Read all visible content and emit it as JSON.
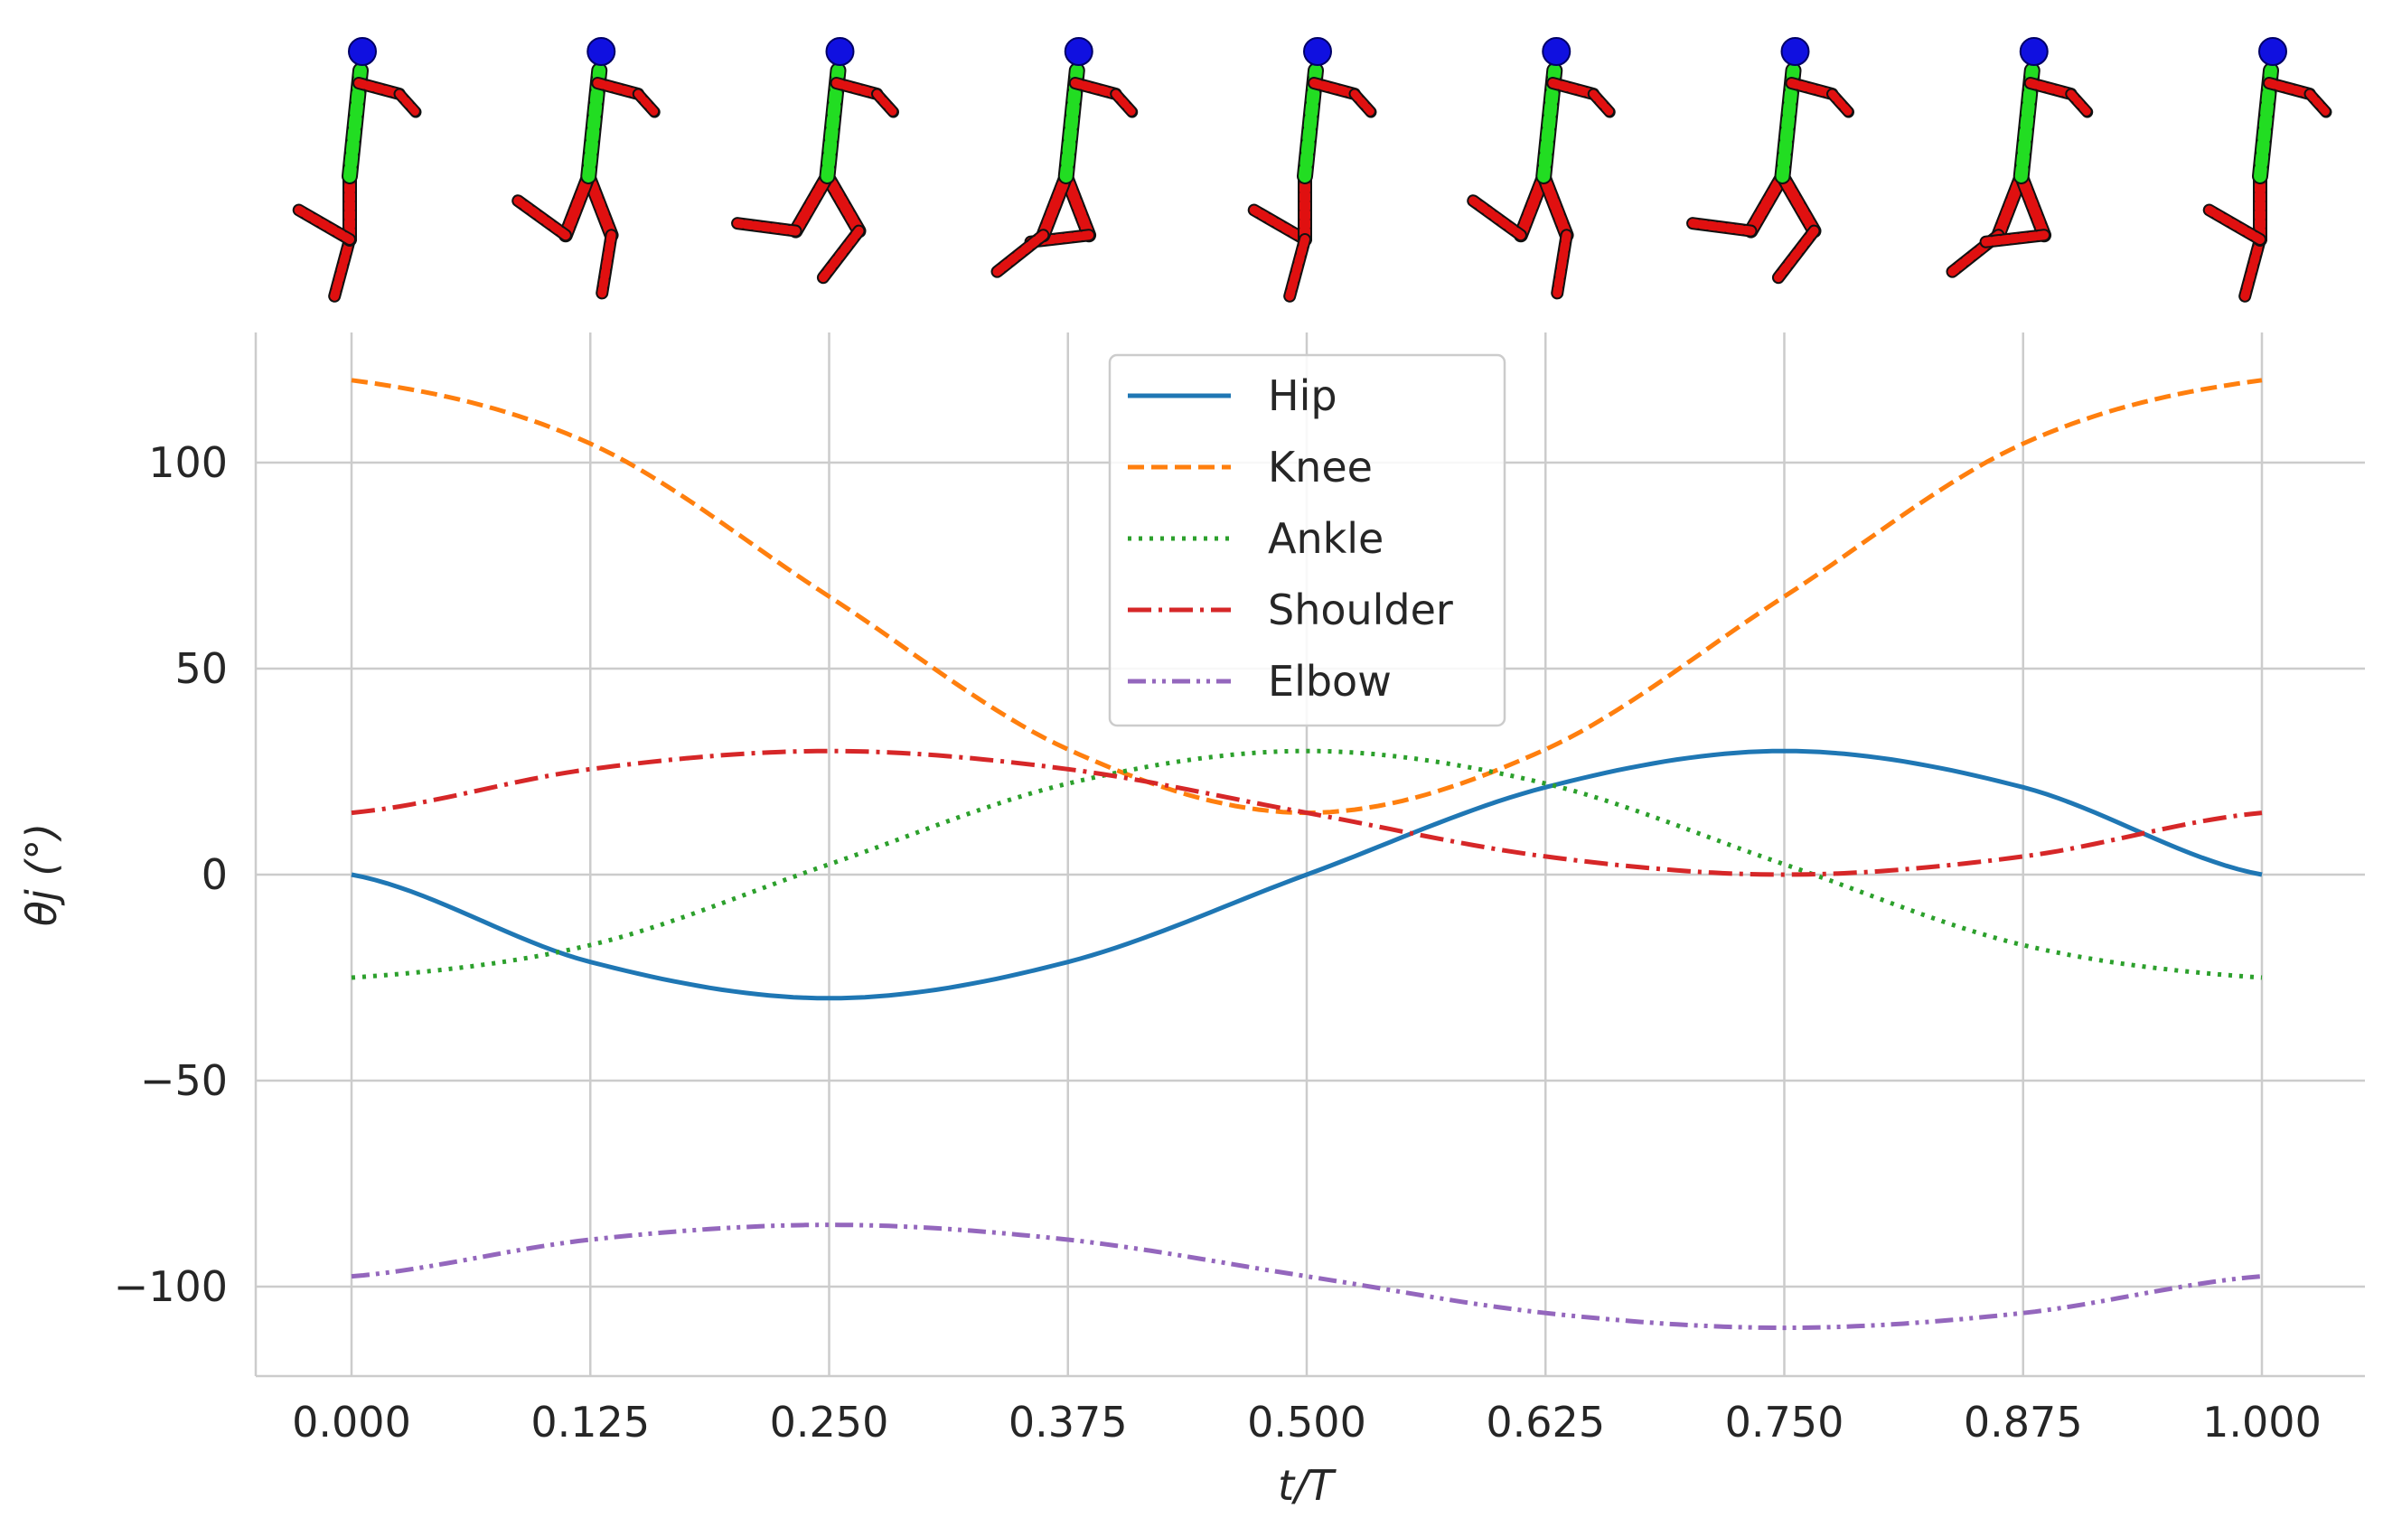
{
  "chart_data": {
    "type": "line",
    "xlabel": "t/T",
    "ylabel": "θj (°)",
    "xlim": [
      -0.05,
      1.05
    ],
    "ylim": [
      -122,
      131
    ],
    "grid": true,
    "legend_position": "top-center",
    "x_ticks": [
      "0.000",
      "0.125",
      "0.250",
      "0.375",
      "0.500",
      "0.625",
      "0.750",
      "0.875",
      "1.000"
    ],
    "y_ticks": [
      {
        "value": 100,
        "label": "100"
      },
      {
        "value": 50,
        "label": "50"
      },
      {
        "value": 0,
        "label": "0"
      },
      {
        "value": -50,
        "label": "−50"
      },
      {
        "value": -100,
        "label": "−100"
      }
    ],
    "x": [
      0.0,
      0.125,
      0.25,
      0.375,
      0.5,
      0.625,
      0.75,
      0.875,
      1.0
    ],
    "series": [
      {
        "name": "Hip",
        "color": "#1f77b4",
        "dash": "solid",
        "values": [
          0,
          -21.2,
          -30,
          -21.2,
          0,
          21.2,
          30,
          21.2,
          0
        ]
      },
      {
        "name": "Knee",
        "color": "#ff7f0e",
        "dash": "dashed",
        "values": [
          120,
          104.6,
          67.5,
          30.4,
          15,
          30.4,
          67.5,
          104.6,
          120
        ]
      },
      {
        "name": "Ankle",
        "color": "#2ca02c",
        "dash": "dotted",
        "values": [
          -25,
          -17.1,
          2.5,
          22.1,
          30,
          22.1,
          2.5,
          -17.1,
          -25
        ]
      },
      {
        "name": "Shoulder",
        "color": "#d62728",
        "dash": "dashdot",
        "values": [
          15,
          25.6,
          30,
          25.6,
          15,
          4.4,
          0,
          4.4,
          15
        ]
      },
      {
        "name": "Elbow",
        "color": "#9467bd",
        "dash": "dashdotdot",
        "values": [
          -97.5,
          -88.6,
          -85,
          -88.6,
          -97.5,
          -106.4,
          -110,
          -106.4,
          -97.5
        ]
      }
    ],
    "pose_strip": {
      "phases": [
        0.0,
        0.125,
        0.25,
        0.375,
        0.5,
        0.625,
        0.75,
        0.875,
        1.0
      ],
      "colors": {
        "head": "#1010e0",
        "torso": "#22dd22",
        "limbs": "#e01010"
      }
    }
  }
}
